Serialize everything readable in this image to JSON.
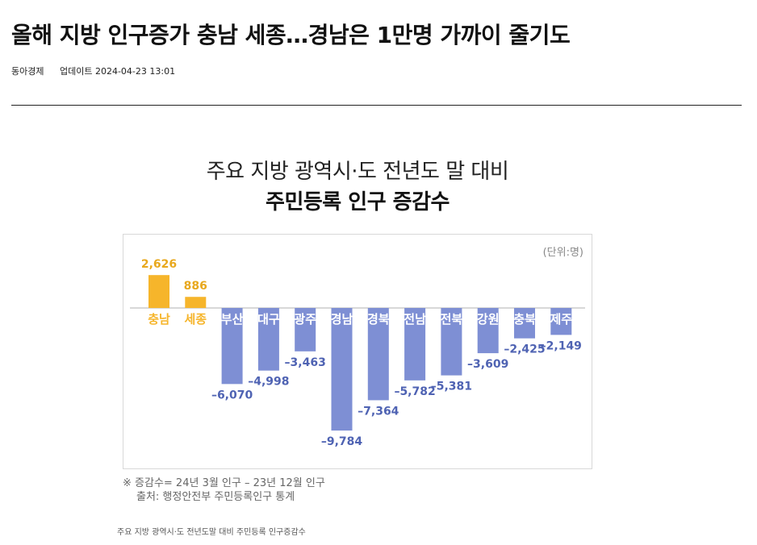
{
  "article": {
    "headline": "올해 지방 인구증가 충남 세종…경남은 1만명 가까이 줄기도",
    "source": "동아경제",
    "updated_label": "업데이트",
    "updated_at": "2024-04-23 13:01"
  },
  "graphic": {
    "title_line1": "주요 지방 광역시·도 전년도 말 대비",
    "title_line2": "주민등록 인구 증감수",
    "unit": "(단위:명)",
    "note": "※ 증감수= 24년 3월 인구 – 23년 12월 인구",
    "source": "출처: 행정안전부 주민등록인구 통계",
    "caption": "주요 지방 광역시·도 전년도말 대비 주민등록 인구증감수"
  },
  "colors": {
    "positive": "#F6B52B",
    "negative": "#7E8FD4",
    "positive_label": "#E8A81D",
    "negative_label": "#4F63B3",
    "baseline": "#b0b0b0"
  },
  "chart_data": {
    "type": "bar",
    "categories": [
      "충남",
      "세종",
      "부산",
      "대구",
      "광주",
      "경남",
      "경북",
      "전남",
      "전북",
      "강원",
      "충북",
      "제주"
    ],
    "values": [
      2626,
      886,
      -6070,
      -4998,
      -3463,
      -9784,
      -7364,
      -5782,
      -5381,
      -3609,
      -2425,
      -2149
    ],
    "value_labels": [
      "2,626",
      "886",
      "–6,070",
      "–4,998",
      "–3,463",
      "–9,784",
      "–7,364",
      "–5,782",
      "–5,381",
      "–3,609",
      "–2,425",
      "–2,149"
    ],
    "ylim": [
      -9784,
      2626
    ],
    "grid": false,
    "legend": "none"
  }
}
